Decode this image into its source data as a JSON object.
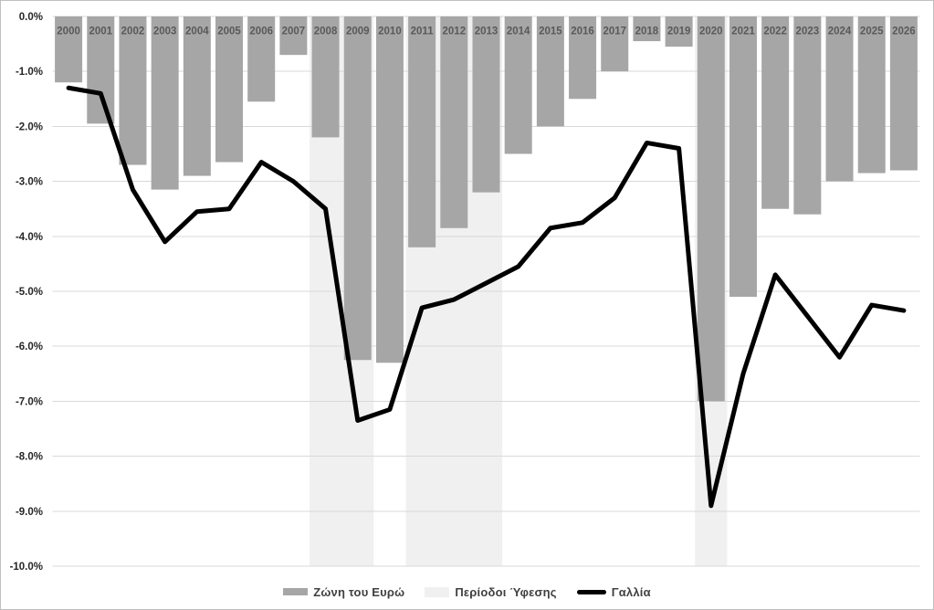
{
  "chart_data": {
    "type": "bar",
    "subtype": "bar-line-combo",
    "title": "",
    "xlabel": "",
    "ylabel": "",
    "categories": [
      "2000",
      "2001",
      "2002",
      "2003",
      "2004",
      "2005",
      "2006",
      "2007",
      "2008",
      "2009",
      "2010",
      "2011",
      "2012",
      "2013",
      "2014",
      "2015",
      "2016",
      "2017",
      "2018",
      "2019",
      "2020",
      "2021",
      "2022",
      "2023",
      "2024",
      "2025",
      "2026"
    ],
    "series": [
      {
        "name": "Ζώνη του Ευρώ",
        "type": "bar",
        "color": "#a6a6a6",
        "values": [
          -1.2,
          -1.95,
          -2.7,
          -3.15,
          -2.9,
          -2.65,
          -1.55,
          -0.7,
          -2.2,
          -6.25,
          -6.3,
          -4.2,
          -3.85,
          -3.2,
          -2.5,
          -2.0,
          -1.5,
          -1.0,
          -0.45,
          -0.55,
          -7.0,
          -5.1,
          -3.5,
          -3.6,
          -3.0,
          -2.85,
          -2.8
        ]
      },
      {
        "name": "Γαλλία",
        "type": "line",
        "color": "#000000",
        "values": [
          -1.3,
          -1.4,
          -3.15,
          -4.1,
          -3.55,
          -3.5,
          -2.65,
          -3.0,
          -3.5,
          -7.35,
          -7.15,
          -5.3,
          -5.15,
          -4.85,
          -4.55,
          -3.85,
          -3.75,
          -3.3,
          -2.3,
          -2.4,
          -8.9,
          -6.5,
          -4.7,
          -5.45,
          -6.2,
          -5.25,
          -5.35
        ]
      }
    ],
    "recession_bands": {
      "name": "Περίοδοι Ύφεσης",
      "color": "#f0f0f0",
      "year_ranges": [
        [
          "2008",
          "2009"
        ],
        [
          "2011",
          "2013"
        ],
        [
          "2020",
          "2020"
        ]
      ]
    },
    "y_axis": {
      "min": -10,
      "max": 0,
      "tick_step": 1,
      "format": "percent",
      "tick_labels": [
        "0.0%",
        "-1.0%",
        "-2.0%",
        "-3.0%",
        "-4.0%",
        "-5.0%",
        "-6.0%",
        "-7.0%",
        "-8.0%",
        "-9.0%",
        "-10.0%"
      ]
    },
    "x_axis": {
      "label_position": "inside-bar-top"
    },
    "grid": true,
    "legend": {
      "position": "bottom-center",
      "items": [
        {
          "label": "Ζώνη του Ευρώ",
          "swatch": "bar"
        },
        {
          "label": "Περίοδοι Ύφεσης",
          "swatch": "band"
        },
        {
          "label": "Γαλλία",
          "swatch": "line"
        }
      ]
    },
    "colors": {
      "bar": "#a6a6a6",
      "recession_band": "#f0f0f0",
      "line": "#000000",
      "gridline": "#d9d9d9",
      "year_label": "#595959",
      "axis_label": "#262626",
      "legend_text": "#404040",
      "figure_border": "#bfbfbf",
      "background": "#ffffff"
    }
  }
}
